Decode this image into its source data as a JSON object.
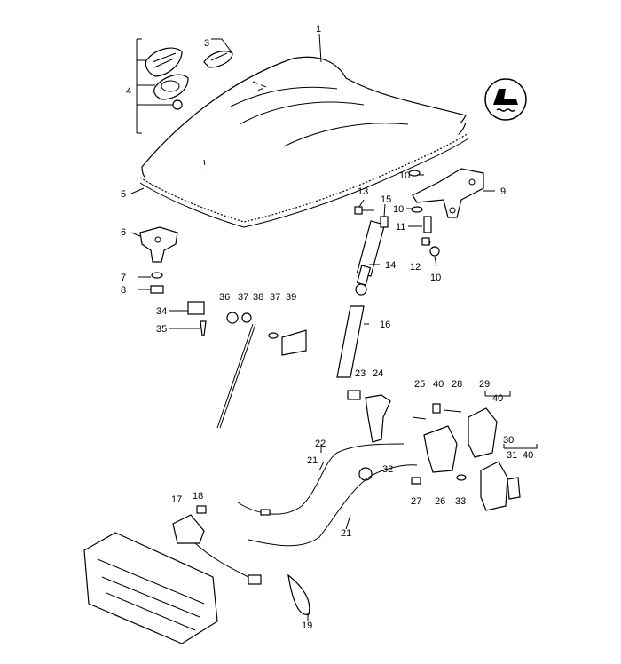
{
  "labels": [
    "1",
    "2",
    "3",
    "4",
    "5",
    "6",
    "7",
    "8",
    "9",
    "10",
    "10",
    "10",
    "11",
    "12",
    "13",
    "14",
    "15",
    "16",
    "17",
    "18",
    "19",
    "21",
    "21",
    "22",
    "23",
    "24",
    "25",
    "26",
    "27",
    "28",
    "29",
    "30",
    "31",
    "32",
    "33",
    "34",
    "35",
    "36",
    "37",
    "37",
    "38",
    "39",
    "40",
    "40",
    "40"
  ],
  "icon": "seat-with-heating-icon"
}
